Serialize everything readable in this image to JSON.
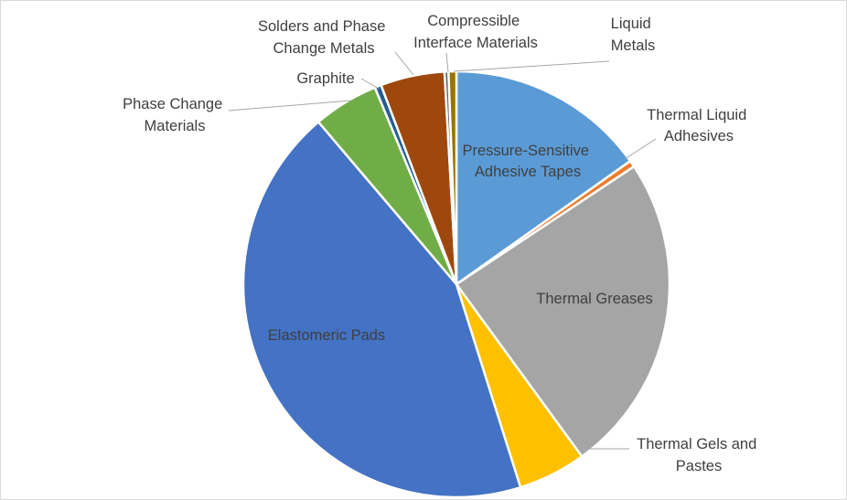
{
  "chart_data": {
    "type": "pie",
    "title": "",
    "start_angle_deg": 0,
    "direction": "clockwise",
    "slices": [
      {
        "label": "Pressure-Sensitive Adhesive Tapes",
        "value": 15.3,
        "color": "#5b9bd5"
      },
      {
        "label": "Thermal Liquid Adhesives",
        "value": 0.5,
        "color": "#ed7d31"
      },
      {
        "label": "Thermal Greases",
        "value": 24.5,
        "color": "#a5a5a5"
      },
      {
        "label": "Thermal Gels and Pastes",
        "value": 5.2,
        "color": "#ffc000"
      },
      {
        "label": "Elastomeric Pads",
        "value": 44.0,
        "color": "#4472c4"
      },
      {
        "label": "Phase Change Materials",
        "value": 5.0,
        "color": "#70ad47"
      },
      {
        "label": "Graphite",
        "value": 0.5,
        "color": "#255e91"
      },
      {
        "label": "Solders and Phase Change Metals",
        "value": 4.9,
        "color": "#9e480e"
      },
      {
        "label": "Compressible Interface Materials",
        "value": 0.3,
        "color": "#636363"
      },
      {
        "label": "Liquid Metals",
        "value": 0.6,
        "color": "#997300"
      }
    ]
  },
  "labels": {
    "psat_line1": "Pressure-Sensitive",
    "psat_line2": "Adhesive Tapes",
    "tla_line1": "Thermal Liquid",
    "tla_line2": "Adhesives",
    "greases": "Thermal Greases",
    "gels_line1": "Thermal Gels and",
    "gels_line2": "Pastes",
    "pads": "Elastomeric Pads",
    "pcm_line1": "Phase Change",
    "pcm_line2": "Materials",
    "graphite": "Graphite",
    "solders_line1": "Solders and Phase",
    "solders_line2": "Change Metals",
    "cim_line1": "Compressible",
    "cim_line2": "Interface Materials",
    "lm_line1": "Liquid",
    "lm_line2": "Metals"
  }
}
